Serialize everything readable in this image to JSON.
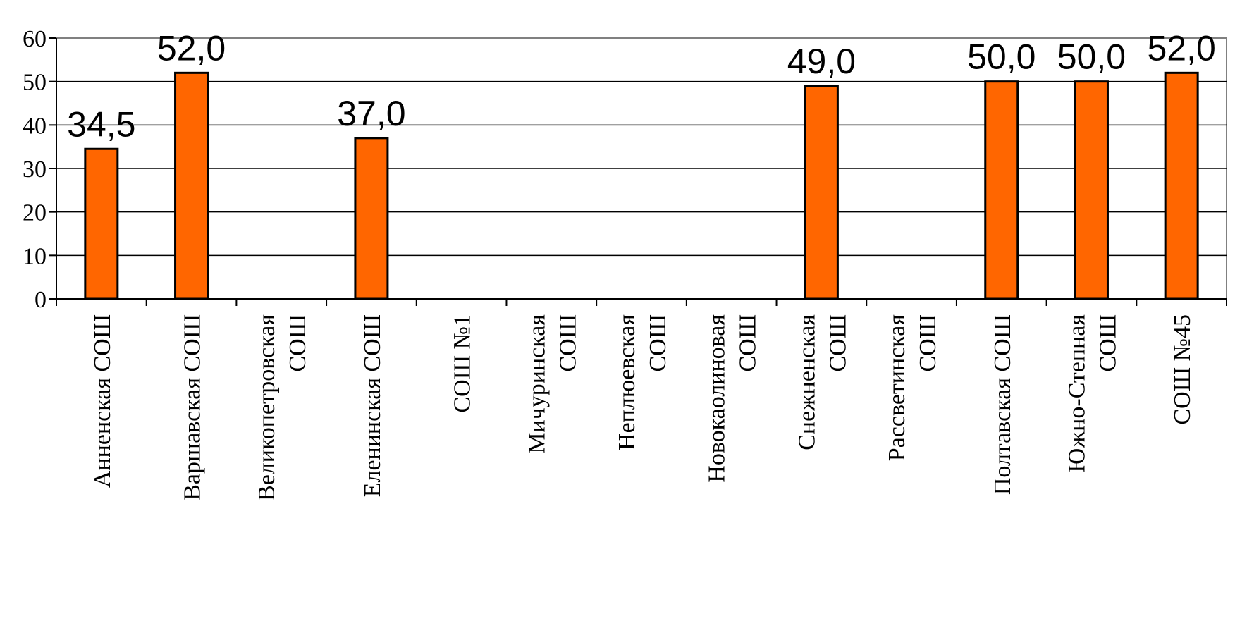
{
  "chart_data": {
    "type": "bar",
    "categories": [
      [
        "Анненская СОШ"
      ],
      [
        "Варшавская СОШ"
      ],
      [
        "Великопетровская",
        "СОШ"
      ],
      [
        "Еленинская СОШ"
      ],
      [
        "СОШ №1"
      ],
      [
        "Мичуринская",
        "СОШ"
      ],
      [
        "Неплюевская",
        "СОШ"
      ],
      [
        "Новокаолиновая",
        "СОШ"
      ],
      [
        "Снежненская",
        "СОШ"
      ],
      [
        "Рассветинская",
        "СОШ"
      ],
      [
        "Полтавская СОШ"
      ],
      [
        "Южно-Степная",
        "СОШ"
      ],
      [
        "СОШ №45"
      ]
    ],
    "values": [
      34.5,
      52.0,
      null,
      37.0,
      null,
      null,
      null,
      null,
      49.0,
      null,
      50.0,
      50.0,
      52.0
    ],
    "value_labels": [
      "34,5",
      "52,0",
      "",
      "37,0",
      "",
      "",
      "",
      "",
      "49,0",
      "",
      "50,0",
      "50,0",
      "52,0"
    ],
    "title": "",
    "xlabel": "",
    "ylabel": "",
    "ylim": [
      0,
      60
    ],
    "yticks": [
      "0",
      "10",
      "20",
      "30",
      "40",
      "50",
      "60"
    ],
    "grid": true,
    "legend": "none",
    "colors": {
      "bar": "#FF6600",
      "bar_outline": "#000000",
      "grid": "#000000",
      "frame": "#808080",
      "text": "#000000"
    }
  }
}
